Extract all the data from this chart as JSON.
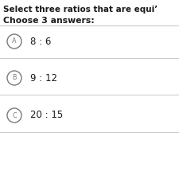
{
  "title": "Select three ratios that are equi’",
  "subtitle": "Choose 3 answers:",
  "options": [
    {
      "label": "A",
      "text": "8 : 6"
    },
    {
      "label": "B",
      "text": "9 : 12"
    },
    {
      "label": "C",
      "text": "20 : 15"
    }
  ],
  "bg_color": "#ffffff",
  "text_color": "#1a1a1a",
  "circle_color": "#7a7a7a",
  "line_color": "#cccccc",
  "title_fontsize": 7.5,
  "subtitle_fontsize": 7.8,
  "option_fontsize": 8.5,
  "label_fontsize": 5.8
}
